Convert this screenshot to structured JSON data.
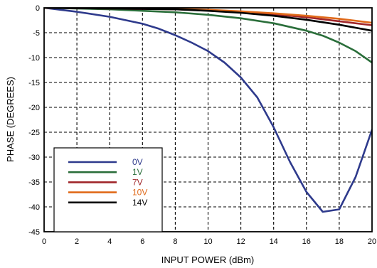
{
  "chart_data": {
    "type": "line",
    "title": "",
    "xlabel": "INPUT POWER (dBm)",
    "ylabel": "PHASE (DEGREES)",
    "xlim": [
      0,
      20
    ],
    "ylim": [
      -45,
      0
    ],
    "x_ticks": [
      "0",
      "2",
      "4",
      "6",
      "8",
      "10",
      "12",
      "14",
      "16",
      "18",
      "20"
    ],
    "y_ticks": [
      "0",
      "-5",
      "-10",
      "-15",
      "-20",
      "-25",
      "-30",
      "-35",
      "-40",
      "-45"
    ],
    "grid": true,
    "grid_style": "dashed",
    "legend_position": "lower-left",
    "series": [
      {
        "name": "0V",
        "color": "#2e3a8c",
        "points": [
          [
            0,
            0
          ],
          [
            2,
            -0.8
          ],
          [
            4,
            -1.8
          ],
          [
            6,
            -3.2
          ],
          [
            7,
            -4.2
          ],
          [
            8,
            -5.5
          ],
          [
            9,
            -7
          ],
          [
            10,
            -8.7
          ],
          [
            11,
            -11
          ],
          [
            12,
            -14
          ],
          [
            13,
            -18
          ],
          [
            14,
            -24
          ],
          [
            15,
            -31
          ],
          [
            16,
            -37
          ],
          [
            17,
            -41
          ],
          [
            18,
            -40.5
          ],
          [
            19,
            -34
          ],
          [
            20,
            -24.5
          ]
        ]
      },
      {
        "name": "1V",
        "color": "#2a6e3a",
        "points": [
          [
            0,
            0
          ],
          [
            4,
            -0.3
          ],
          [
            8,
            -0.9
          ],
          [
            10,
            -1.4
          ],
          [
            12,
            -2.1
          ],
          [
            14,
            -3.1
          ],
          [
            16,
            -4.6
          ],
          [
            17,
            -5.6
          ],
          [
            18,
            -7
          ],
          [
            19,
            -8.7
          ],
          [
            20,
            -11
          ]
        ]
      },
      {
        "name": "7V",
        "color": "#a0262a",
        "points": [
          [
            0,
            0
          ],
          [
            8,
            -0.3
          ],
          [
            10,
            -0.5
          ],
          [
            12,
            -0.8
          ],
          [
            14,
            -1.3
          ],
          [
            16,
            -1.9
          ],
          [
            18,
            -2.7
          ],
          [
            20,
            -3.5
          ]
        ]
      },
      {
        "name": "10V",
        "color": "#e06a1a",
        "points": [
          [
            0,
            0
          ],
          [
            8,
            -0.2
          ],
          [
            10,
            -0.4
          ],
          [
            12,
            -0.7
          ],
          [
            14,
            -1.1
          ],
          [
            16,
            -1.6
          ],
          [
            18,
            -2.2
          ],
          [
            20,
            -3
          ]
        ]
      },
      {
        "name": "14V",
        "color": "#000000",
        "points": [
          [
            0,
            0
          ],
          [
            8,
            -0.3
          ],
          [
            10,
            -0.6
          ],
          [
            12,
            -1
          ],
          [
            14,
            -1.6
          ],
          [
            16,
            -2.4
          ],
          [
            18,
            -3.4
          ],
          [
            20,
            -4.6
          ]
        ]
      }
    ]
  }
}
